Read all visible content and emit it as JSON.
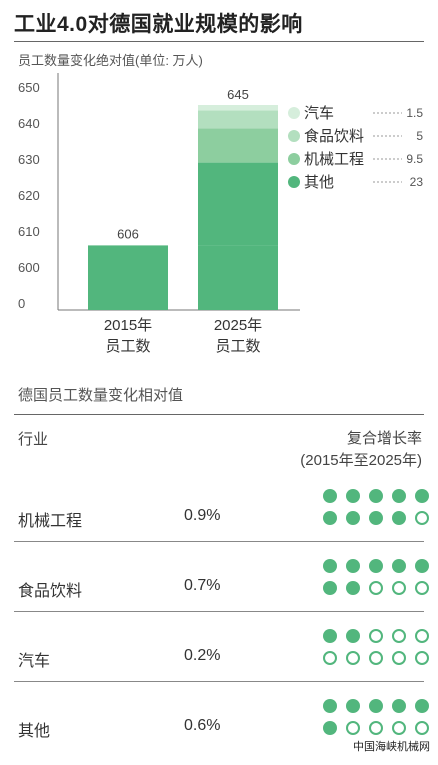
{
  "title": "工业4.0对德国就业规模的影响",
  "subtitle": "员工数量变化绝对值(单位: 万人)",
  "chart_data": {
    "type": "bar",
    "y_ticks": [
      "650",
      "640",
      "630",
      "620",
      "610",
      "600",
      "0"
    ],
    "categories": [
      {
        "line1": "2015年",
        "line2": "员工数",
        "total_label": "606"
      },
      {
        "line1": "2025年",
        "line2": "员工数",
        "total_label": "645"
      }
    ],
    "base_2015": 606,
    "base_2025": 606,
    "series": [
      {
        "name": "其他",
        "value": 23,
        "color": "#52b67d"
      },
      {
        "name": "机械工程",
        "value": 9.5,
        "color": "#8dce9f"
      },
      {
        "name": "食品饮料",
        "value": 5,
        "color": "#b3dfbf"
      },
      {
        "name": "汽车",
        "value": 1.5,
        "color": "#d6eedc"
      }
    ],
    "legend_order": [
      {
        "name": "汽车",
        "value": "1.5",
        "color": "#d6eedc"
      },
      {
        "name": "食品饮料",
        "value": "5",
        "color": "#b3dfbf"
      },
      {
        "name": "机械工程",
        "value": "9.5",
        "color": "#8dce9f"
      },
      {
        "name": "其他",
        "value": "23",
        "color": "#52b67d"
      }
    ]
  },
  "table": {
    "section_title": "德国员工数量变化相对值",
    "col_industry": "行业",
    "col_rate_line1": "复合增长率",
    "col_rate_line2": "(2015年至2025年)",
    "rows": [
      {
        "name": "机械工程",
        "rate": "0.9%",
        "filled_dots": 9
      },
      {
        "name": "食品饮料",
        "rate": "0.7%",
        "filled_dots": 7
      },
      {
        "name": "汽车",
        "rate": "0.2%",
        "filled_dots": 2
      },
      {
        "name": "其他",
        "rate": "0.6%",
        "filled_dots": 6
      }
    ]
  },
  "watermark": "中国海峡机械网"
}
